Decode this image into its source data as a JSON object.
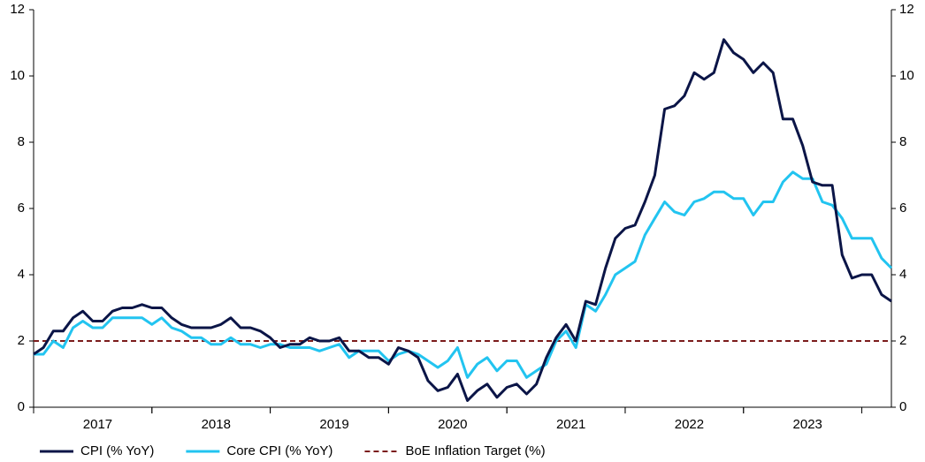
{
  "chart_data": {
    "type": "line",
    "categories": [
      null,
      null,
      null,
      null,
      null,
      null,
      "2017",
      null,
      null,
      null,
      null,
      null,
      null,
      null,
      null,
      null,
      null,
      null,
      "2018",
      null,
      null,
      null,
      null,
      null,
      null,
      null,
      null,
      null,
      null,
      null,
      "2019",
      null,
      null,
      null,
      null,
      null,
      null,
      null,
      null,
      null,
      null,
      null,
      "2020",
      null,
      null,
      null,
      null,
      null,
      null,
      null,
      null,
      null,
      null,
      null,
      "2021",
      null,
      null,
      null,
      null,
      null,
      null,
      null,
      null,
      null,
      null,
      null,
      "2022",
      null,
      null,
      null,
      null,
      null,
      null,
      null,
      null,
      null,
      null,
      null,
      "2023",
      null,
      null,
      null,
      null,
      null,
      null,
      null,
      null,
      null
    ],
    "series": [
      {
        "name": "CPI (% YoY)",
        "color": "#0b1547",
        "values": [
          1.6,
          1.8,
          2.3,
          2.3,
          2.7,
          2.9,
          2.6,
          2.6,
          2.9,
          3.0,
          3.0,
          3.1,
          3.0,
          3.0,
          2.7,
          2.5,
          2.4,
          2.4,
          2.4,
          2.5,
          2.7,
          2.4,
          2.4,
          2.3,
          2.1,
          1.8,
          1.9,
          1.9,
          2.1,
          2.0,
          2.0,
          2.1,
          1.7,
          1.7,
          1.5,
          1.5,
          1.3,
          1.8,
          1.7,
          1.5,
          0.8,
          0.5,
          0.6,
          1.0,
          0.2,
          0.5,
          0.7,
          0.3,
          0.6,
          0.7,
          0.4,
          0.7,
          1.5,
          2.1,
          2.5,
          2.0,
          3.2,
          3.1,
          4.2,
          5.1,
          5.4,
          5.5,
          6.2,
          7.0,
          9.0,
          9.1,
          9.4,
          10.1,
          9.9,
          10.1,
          11.1,
          10.7,
          10.5,
          10.1,
          10.4,
          10.1,
          8.7,
          8.7,
          7.9,
          6.8,
          6.7,
          6.7,
          4.6,
          3.9,
          4.0,
          4.0,
          3.4,
          3.2
        ]
      },
      {
        "name": "Core CPI (% YoY)",
        "color": "#22c4f0",
        "values": [
          1.6,
          1.6,
          2.0,
          1.8,
          2.4,
          2.6,
          2.4,
          2.4,
          2.7,
          2.7,
          2.7,
          2.7,
          2.5,
          2.7,
          2.4,
          2.3,
          2.1,
          2.1,
          1.9,
          1.9,
          2.1,
          1.9,
          1.9,
          1.8,
          1.9,
          1.9,
          1.8,
          1.8,
          1.8,
          1.7,
          1.8,
          1.9,
          1.5,
          1.7,
          1.7,
          1.7,
          1.4,
          1.6,
          1.7,
          1.6,
          1.4,
          1.2,
          1.4,
          1.8,
          0.9,
          1.3,
          1.5,
          1.1,
          1.4,
          1.4,
          0.9,
          1.1,
          1.3,
          2.0,
          2.3,
          1.8,
          3.1,
          2.9,
          3.4,
          4.0,
          4.2,
          4.4,
          5.2,
          5.7,
          6.2,
          5.9,
          5.8,
          6.2,
          6.3,
          6.5,
          6.5,
          6.3,
          6.3,
          5.8,
          6.2,
          6.2,
          6.8,
          7.1,
          6.9,
          6.9,
          6.2,
          6.1,
          5.7,
          5.1,
          5.1,
          5.1,
          4.5,
          4.2
        ]
      }
    ],
    "reference_lines": [
      {
        "name": "BoE Inflation Target (%)",
        "color": "#7b1c1c",
        "value": 2
      }
    ],
    "ylim": [
      0,
      12
    ],
    "yticks": [
      0,
      2,
      4,
      6,
      8,
      10,
      12
    ],
    "y2lim": [
      0,
      12
    ],
    "y2ticks": [
      0,
      2,
      4,
      6,
      8,
      10,
      12
    ],
    "grid": false,
    "legend": "bottom-left"
  }
}
